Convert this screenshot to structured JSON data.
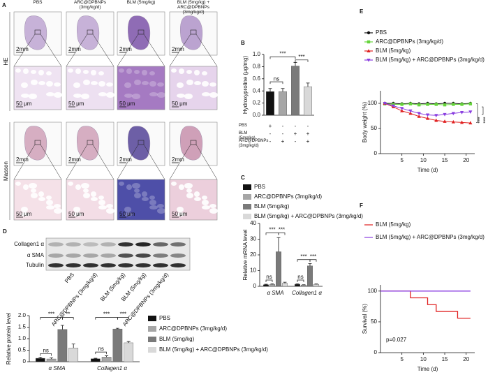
{
  "panel_a": {
    "label": "A",
    "columns": [
      "PBS",
      "ARC@DPBNPs (3mg/kg/d)",
      "BLM (5mg/kg)",
      "BLM (5mg/kg) + ARC@DPBNPs (3mg/kg/d)"
    ],
    "rows": [
      "HE",
      "Masson"
    ],
    "scale_bars": [
      "2mm",
      "50 μm"
    ]
  },
  "panel_d_blot": {
    "label": "D",
    "bands": [
      "Collagen1 α",
      "α SMA",
      "Tubulin"
    ],
    "lanes": [
      "PBS",
      "ARC@DPBNPs (3mg/kg/d)",
      "BLM (5mg/kg)",
      "BLM (5mg/kg)",
      "ARC@DPBNPs (3mg/kg/d)"
    ]
  },
  "chart_data": [
    {
      "type": "bar",
      "label": "B",
      "ylabel": "Hydroxyproline (μg/mg)",
      "values": [
        0.39,
        0.39,
        0.81,
        0.47
      ],
      "errors": [
        0.05,
        0.05,
        0.06,
        0.06
      ],
      "colors": [
        "#111111",
        "#a6a6a6",
        "#7a7a7a",
        "#d9d9d9"
      ],
      "ylim": [
        0,
        1.0
      ],
      "yticks": [
        {
          "value": 0,
          "label": "0.0"
        },
        0.2,
        0.4,
        0.6,
        0.8,
        {
          "value": 1,
          "label": "1.0"
        }
      ],
      "treatment_table": {
        "rows": [
          "PBS",
          "BLM (5mg/kg)",
          "ARC@DPBNPs (3mg/kg/d)"
        ],
        "marks": [
          [
            "+",
            "-",
            "-",
            "-"
          ],
          [
            "-",
            "-",
            "+",
            "+"
          ],
          [
            "-",
            "+",
            "-",
            "+"
          ]
        ]
      },
      "annotations": [
        "ns",
        "***",
        "***"
      ]
    },
    {
      "type": "bar",
      "label": "C",
      "ylabel": "Relative mRNA level",
      "categories": [
        "α SMA",
        "Collagen1 α"
      ],
      "series": [
        {
          "name": "PBS",
          "color": "#111111",
          "values": [
            1.0,
            1.3
          ],
          "errors": [
            0.3,
            0.3
          ]
        },
        {
          "name": "ARC@DPBNPs (3mg/kg/d)",
          "color": "#a6a6a6",
          "values": [
            1.2,
            0.8
          ],
          "errors": [
            0.4,
            0.2
          ]
        },
        {
          "name": "BLM (5mg/kg)",
          "color": "#7a7a7a",
          "values": [
            22,
            13
          ],
          "errors": [
            9,
            1.5
          ]
        },
        {
          "name": "BLM (5mg/kg) + ARC@DPBNPs (3mg/kg/d)",
          "color": "#d9d9d9",
          "values": [
            2.0,
            1.2
          ],
          "errors": [
            0.6,
            0.3
          ]
        }
      ],
      "ylim": [
        0,
        40
      ],
      "yticks": [
        0,
        10,
        20,
        30,
        40
      ],
      "annotations": [
        "ns",
        "***",
        "***",
        "ns",
        "***",
        "***"
      ]
    },
    {
      "type": "bar",
      "ylabel": "Relative protein level",
      "categories": [
        "α SMA",
        "Collagen1 α"
      ],
      "series": [
        {
          "name": "PBS",
          "color": "#111111",
          "values": [
            0.15,
            0.13
          ],
          "errors": [
            0.05,
            0.02
          ]
        },
        {
          "name": "ARC@DPBNPs (3mg/kg/d)",
          "color": "#a6a6a6",
          "values": [
            0.12,
            0.2
          ],
          "errors": [
            0.05,
            0.06
          ]
        },
        {
          "name": "BLM (5mg/kg)",
          "color": "#7a7a7a",
          "values": [
            1.4,
            1.42
          ],
          "errors": [
            0.18,
            0.03
          ]
        },
        {
          "name": "BLM (5mg/kg) + ARC@DPBNPs (3mg/kg/d)",
          "color": "#d9d9d9",
          "values": [
            0.6,
            0.82
          ],
          "errors": [
            0.17,
            0.06
          ]
        }
      ],
      "ylim": [
        0,
        2.0
      ],
      "yticks": [
        0,
        0.5,
        {
          "value": 1,
          "label": "1.0"
        },
        1.5,
        {
          "value": 2,
          "label": "2.0"
        }
      ],
      "annotations": [
        "ns",
        "***",
        "**",
        "ns",
        "***",
        "***"
      ]
    },
    {
      "type": "line",
      "label": "E",
      "ylabel": "Body weight (%)",
      "xlabel": "Time (d)",
      "x": [
        1,
        3,
        5,
        7,
        9,
        11,
        13,
        15,
        17,
        19,
        21
      ],
      "series": [
        {
          "name": "PBS",
          "color": "#111111",
          "marker": "circle",
          "values": [
            100,
            100,
            99,
            100,
            99,
            100,
            99,
            100,
            100,
            99,
            100
          ]
        },
        {
          "name": "ARC@DPBNPs (3mg/kg/d)",
          "color": "#66d43c",
          "marker": "square",
          "values": [
            99,
            98,
            98,
            99,
            97,
            98,
            98,
            97,
            98,
            98,
            99
          ]
        },
        {
          "name": "BLM (5mg/kg)",
          "color": "#e02020",
          "marker": "triangle-up",
          "values": [
            100,
            93,
            85,
            80,
            74,
            70,
            66,
            64,
            63,
            62,
            61
          ]
        },
        {
          "name": "BLM (5mg/kg) + ARC@DPBNPs (3mg/kg/d)",
          "color": "#8a3ee0",
          "marker": "triangle-down",
          "values": [
            100,
            95,
            90,
            85,
            80,
            77,
            76,
            78,
            80,
            82,
            83
          ]
        }
      ],
      "xlim": [
        0,
        22
      ],
      "ylim": [
        0,
        125
      ],
      "xticks": [
        5,
        10,
        15,
        20
      ],
      "yticks": [
        0,
        50,
        100
      ],
      "annotations": [
        "***",
        "***"
      ]
    },
    {
      "type": "line",
      "step": true,
      "label": "F",
      "ylabel": "Survival (%)",
      "xlabel": "Time (d)",
      "x": [
        0,
        7,
        11,
        13,
        18,
        21
      ],
      "series": [
        {
          "name": "BLM (5mg/kg)",
          "color": "#e02020",
          "values": [
            100,
            89,
            78,
            67,
            56,
            56
          ]
        },
        {
          "name": "BLM (5mg/kg) + ARC@DPBNPs (3mg/kg/d)",
          "color": "#8a3ee0",
          "values": [
            100,
            100,
            100,
            100,
            100,
            100
          ]
        }
      ],
      "xlim": [
        0,
        22
      ],
      "ylim": [
        0,
        110
      ],
      "xticks": [
        5,
        10,
        15,
        20
      ],
      "yticks": [
        0,
        50,
        100
      ],
      "annotations": [
        "p=0.027"
      ]
    }
  ]
}
